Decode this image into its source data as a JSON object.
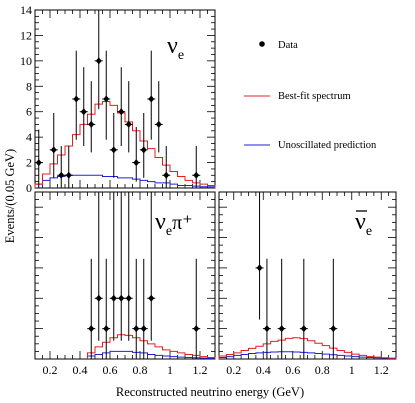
{
  "chart_data": {
    "type": "line",
    "xlabel": "Reconstructed neutrino energy (GeV)",
    "ylabel": "Events/(0.05 GeV)",
    "legend": [
      {
        "label": "Data",
        "marker": "point",
        "color": "#000000"
      },
      {
        "label": "Best-fit spectrum",
        "color": "#e02020"
      },
      {
        "label": "Unoscillated prediction",
        "color": "#2020d8"
      }
    ],
    "colors": {
      "best_fit": "#e02020",
      "unoscillated": "#2020d8",
      "data": "#000000"
    },
    "panels": [
      {
        "label_main": "ν",
        "label_sub": "e",
        "label_sup": "",
        "label_bar": false,
        "xlim": [
          0.1,
          1.3
        ],
        "ylim": [
          0,
          14
        ],
        "yticks": [
          0,
          2,
          4,
          6,
          8,
          10,
          12,
          14
        ],
        "xticks": [],
        "bin_edges": [
          0.1,
          0.15,
          0.2,
          0.25,
          0.3,
          0.35,
          0.4,
          0.45,
          0.5,
          0.55,
          0.6,
          0.65,
          0.7,
          0.75,
          0.8,
          0.85,
          0.9,
          0.95,
          1.0,
          1.05,
          1.1,
          1.15,
          1.2,
          1.25,
          1.3
        ],
        "best_fit": [
          0.3,
          1.1,
          1.9,
          2.6,
          3.3,
          4.2,
          5.0,
          5.8,
          6.6,
          6.8,
          6.5,
          5.9,
          5.2,
          4.5,
          3.7,
          3.1,
          2.4,
          1.8,
          1.3,
          0.9,
          0.6,
          0.4,
          0.3,
          0.2
        ],
        "unoscillated": [
          0.3,
          0.6,
          0.8,
          0.9,
          1.0,
          1.0,
          1.0,
          1.0,
          1.0,
          0.9,
          0.9,
          0.8,
          0.8,
          0.7,
          0.6,
          0.5,
          0.4,
          0.4,
          0.3,
          0.2,
          0.2,
          0.15,
          0.1,
          0.1
        ],
        "data": [
          {
            "x": 0.125,
            "y": 2,
            "lo": 0,
            "hi": 4.6
          },
          {
            "x": 0.225,
            "y": 3,
            "lo": 0.8,
            "hi": 5.9
          },
          {
            "x": 0.275,
            "y": 1,
            "lo": 0,
            "hi": 3.3
          },
          {
            "x": 0.325,
            "y": 1,
            "lo": 0,
            "hi": 3.3
          },
          {
            "x": 0.375,
            "y": 7,
            "lo": 3.8,
            "hi": 10.8
          },
          {
            "x": 0.425,
            "y": 6,
            "lo": 3.3,
            "hi": 9.5
          },
          {
            "x": 0.475,
            "y": 5,
            "lo": 2.8,
            "hi": 8.4
          },
          {
            "x": 0.525,
            "y": 10,
            "lo": 6.2,
            "hi": 14.0
          },
          {
            "x": 0.575,
            "y": 7,
            "lo": 3.8,
            "hi": 10.8
          },
          {
            "x": 0.625,
            "y": 3,
            "lo": 0.8,
            "hi": 5.9
          },
          {
            "x": 0.675,
            "y": 6,
            "lo": 3.3,
            "hi": 9.5
          },
          {
            "x": 0.725,
            "y": 5,
            "lo": 2.8,
            "hi": 8.4
          },
          {
            "x": 0.775,
            "y": 2,
            "lo": 0.5,
            "hi": 4.8
          },
          {
            "x": 0.825,
            "y": 3,
            "lo": 0.8,
            "hi": 5.9
          },
          {
            "x": 0.875,
            "y": 7,
            "lo": 3.8,
            "hi": 10.8
          },
          {
            "x": 0.925,
            "y": 5,
            "lo": 2.8,
            "hi": 8.4
          },
          {
            "x": 0.975,
            "y": 1,
            "lo": 0,
            "hi": 3.3
          },
          {
            "x": 1.175,
            "y": 1,
            "lo": 0,
            "hi": 3.3
          }
        ]
      },
      {
        "label_main": "ν",
        "label_sub": "e",
        "label_sup": "π⁺",
        "label_bar": false,
        "xlim": [
          0.1,
          1.3
        ],
        "ylim": [
          0,
          5.5
        ],
        "yticks": [],
        "xticks": [
          0.2,
          0.4,
          0.6,
          0.8,
          1.0,
          1.2
        ],
        "bin_edges": [
          0.45,
          0.5,
          0.55,
          0.6,
          0.65,
          0.7,
          0.75,
          0.8,
          0.85,
          0.9,
          0.95,
          1.0,
          1.05,
          1.1,
          1.15,
          1.2,
          1.25,
          1.3
        ],
        "best_fit": [
          0.2,
          0.4,
          0.55,
          0.7,
          0.8,
          0.78,
          0.7,
          0.6,
          0.5,
          0.4,
          0.3,
          0.25,
          0.2,
          0.15,
          0.12,
          0.08,
          0.05
        ],
        "unoscillated": [
          0.1,
          0.15,
          0.2,
          0.25,
          0.25,
          0.25,
          0.22,
          0.2,
          0.15,
          0.12,
          0.1,
          0.08,
          0.06,
          0.05,
          0.04,
          0.03,
          0.02
        ],
        "data": [
          {
            "x": 0.475,
            "y": 1,
            "lo": 0,
            "hi": 3.3
          },
          {
            "x": 0.525,
            "y": 2,
            "lo": 0.6,
            "hi": 5.5
          },
          {
            "x": 0.575,
            "y": 1,
            "lo": 0,
            "hi": 3.3
          },
          {
            "x": 0.625,
            "y": 2,
            "lo": 0.6,
            "hi": 5.5
          },
          {
            "x": 0.675,
            "y": 2,
            "lo": 0.6,
            "hi": 5.5
          },
          {
            "x": 0.725,
            "y": 2,
            "lo": 0.6,
            "hi": 5.5
          },
          {
            "x": 0.775,
            "y": 1,
            "lo": 0,
            "hi": 3.3
          },
          {
            "x": 0.825,
            "y": 1,
            "lo": 0,
            "hi": 3.3
          },
          {
            "x": 0.875,
            "y": 2,
            "lo": 0.6,
            "hi": 5.5
          },
          {
            "x": 1.175,
            "y": 1,
            "lo": 0,
            "hi": 3.3
          }
        ]
      },
      {
        "label_main": "ν",
        "label_sub": "e",
        "label_sup": "",
        "label_bar": true,
        "xlim": [
          0.1,
          1.3
        ],
        "ylim": [
          0,
          5.5
        ],
        "yticks": [],
        "xticks": [
          0.2,
          0.4,
          0.6,
          0.8,
          1.0,
          1.2
        ],
        "bin_edges": [
          0.1,
          0.15,
          0.2,
          0.25,
          0.3,
          0.35,
          0.4,
          0.45,
          0.5,
          0.55,
          0.6,
          0.65,
          0.7,
          0.75,
          0.8,
          0.85,
          0.9,
          0.95,
          1.0,
          1.05,
          1.1,
          1.15,
          1.2,
          1.25,
          1.3
        ],
        "best_fit": [
          0.1,
          0.15,
          0.2,
          0.28,
          0.35,
          0.42,
          0.5,
          0.58,
          0.62,
          0.68,
          0.7,
          0.67,
          0.6,
          0.52,
          0.44,
          0.36,
          0.28,
          0.22,
          0.16,
          0.12,
          0.08,
          0.06,
          0.04,
          0.03
        ],
        "unoscillated": [
          0.05,
          0.08,
          0.12,
          0.15,
          0.18,
          0.2,
          0.22,
          0.23,
          0.24,
          0.24,
          0.23,
          0.22,
          0.2,
          0.18,
          0.16,
          0.14,
          0.12,
          0.1,
          0.08,
          0.06,
          0.05,
          0.04,
          0.03,
          0.02
        ],
        "data": [
          {
            "x": 0.375,
            "y": 3,
            "lo": 1.3,
            "hi": 6.0
          },
          {
            "x": 0.425,
            "y": 1,
            "lo": 0,
            "hi": 3.3
          },
          {
            "x": 0.525,
            "y": 1,
            "lo": 0,
            "hi": 3.3
          },
          {
            "x": 0.675,
            "y": 1,
            "lo": 0,
            "hi": 3.3
          },
          {
            "x": 0.875,
            "y": 1,
            "lo": 0,
            "hi": 3.3
          }
        ]
      }
    ]
  }
}
